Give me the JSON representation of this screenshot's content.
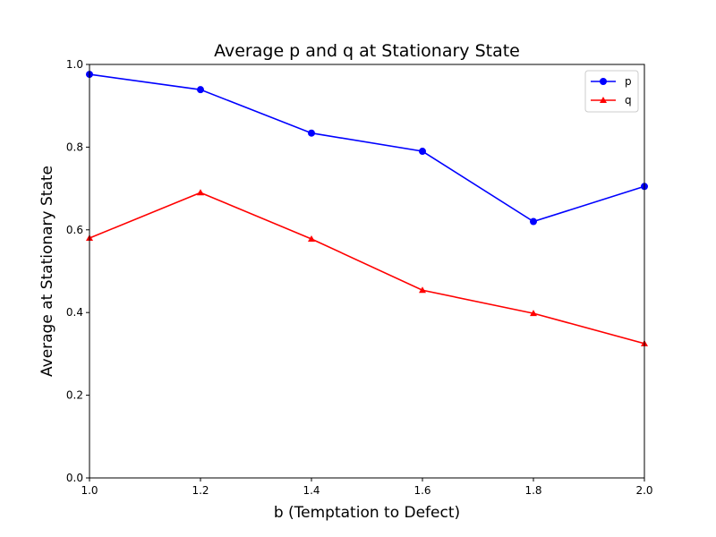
{
  "chart_data": {
    "type": "line",
    "title": "Average p and q at Stationary State",
    "xlabel": "b (Temptation to Defect)",
    "ylabel": "Average at Stationary State",
    "x": [
      1.0,
      1.2,
      1.4,
      1.6,
      1.8,
      2.0
    ],
    "xlim": [
      1.0,
      2.0
    ],
    "ylim": [
      0.0,
      1.0
    ],
    "xticks": [
      "1.0",
      "1.2",
      "1.4",
      "1.6",
      "1.8",
      "2.0"
    ],
    "yticks": [
      "0.0",
      "0.2",
      "0.4",
      "0.6",
      "0.8",
      "1.0"
    ],
    "grid": false,
    "legend_position": "top-right",
    "series": [
      {
        "name": "p",
        "color": "#0000ff",
        "marker": "circle",
        "values": [
          0.976,
          0.939,
          0.834,
          0.79,
          0.62,
          0.705
        ]
      },
      {
        "name": "q",
        "color": "#ff0000",
        "marker": "triangle",
        "values": [
          0.58,
          0.69,
          0.578,
          0.454,
          0.398,
          0.325
        ]
      }
    ]
  }
}
